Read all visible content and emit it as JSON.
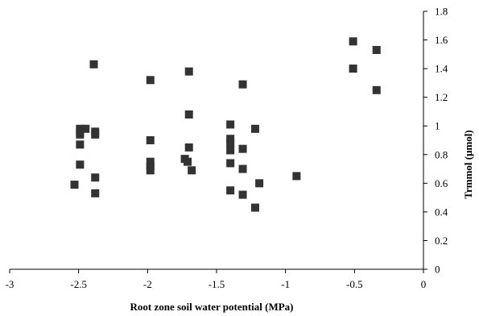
{
  "chart_data": {
    "type": "scatter",
    "xlabel": "Root zone soil water potential (MPa)",
    "ylabel": "Trmmol (μmol)",
    "xlim": [
      -3,
      0
    ],
    "ylim": [
      0,
      1.8
    ],
    "x_ticks": [
      -3,
      -2.5,
      -2,
      -1.5,
      -1,
      -0.5,
      0
    ],
    "x_tick_labels": [
      "-3",
      "-2.5",
      "-2",
      "-1.5",
      "-1",
      "-0.5",
      "0"
    ],
    "y_ticks": [
      0,
      0.2,
      0.4,
      0.6,
      0.8,
      1,
      1.2,
      1.4,
      1.6,
      1.8
    ],
    "y_tick_labels": [
      "0",
      "0.2",
      "0.4",
      "0.6",
      "0.8",
      "1",
      "1.2",
      "1.4",
      "1.6",
      "1.8"
    ],
    "y_axis_side": "right",
    "grid": false,
    "legend": "none",
    "marker": "square",
    "marker_color": "#333333",
    "series": [
      {
        "points": [
          [
            -2.39,
            1.43
          ],
          [
            -2.53,
            0.59
          ],
          [
            -2.49,
            0.98
          ],
          [
            -2.45,
            0.98
          ],
          [
            -2.49,
            0.96
          ],
          [
            -2.49,
            0.94
          ],
          [
            -2.38,
            0.96
          ],
          [
            -2.38,
            0.94
          ],
          [
            -2.49,
            0.87
          ],
          [
            -2.49,
            0.73
          ],
          [
            -2.38,
            0.64
          ],
          [
            -2.38,
            0.53
          ],
          [
            -1.98,
            1.32
          ],
          [
            -1.98,
            0.9
          ],
          [
            -1.98,
            0.75
          ],
          [
            -1.98,
            0.72
          ],
          [
            -1.98,
            0.69
          ],
          [
            -1.7,
            1.38
          ],
          [
            -1.7,
            1.08
          ],
          [
            -1.7,
            0.85
          ],
          [
            -1.73,
            0.77
          ],
          [
            -1.71,
            0.75
          ],
          [
            -1.68,
            0.69
          ],
          [
            -1.31,
            1.29
          ],
          [
            -1.4,
            1.01
          ],
          [
            -1.4,
            0.91
          ],
          [
            -1.4,
            0.88
          ],
          [
            -1.4,
            0.83
          ],
          [
            -1.31,
            0.84
          ],
          [
            -1.22,
            0.98
          ],
          [
            -1.4,
            0.74
          ],
          [
            -1.31,
            0.7
          ],
          [
            -1.19,
            0.6
          ],
          [
            -1.4,
            0.55
          ],
          [
            -1.31,
            0.52
          ],
          [
            -1.22,
            0.43
          ],
          [
            -0.92,
            0.65
          ],
          [
            -0.51,
            1.59
          ],
          [
            -0.51,
            1.4
          ],
          [
            -0.34,
            1.53
          ],
          [
            -0.34,
            1.25
          ]
        ]
      }
    ]
  }
}
